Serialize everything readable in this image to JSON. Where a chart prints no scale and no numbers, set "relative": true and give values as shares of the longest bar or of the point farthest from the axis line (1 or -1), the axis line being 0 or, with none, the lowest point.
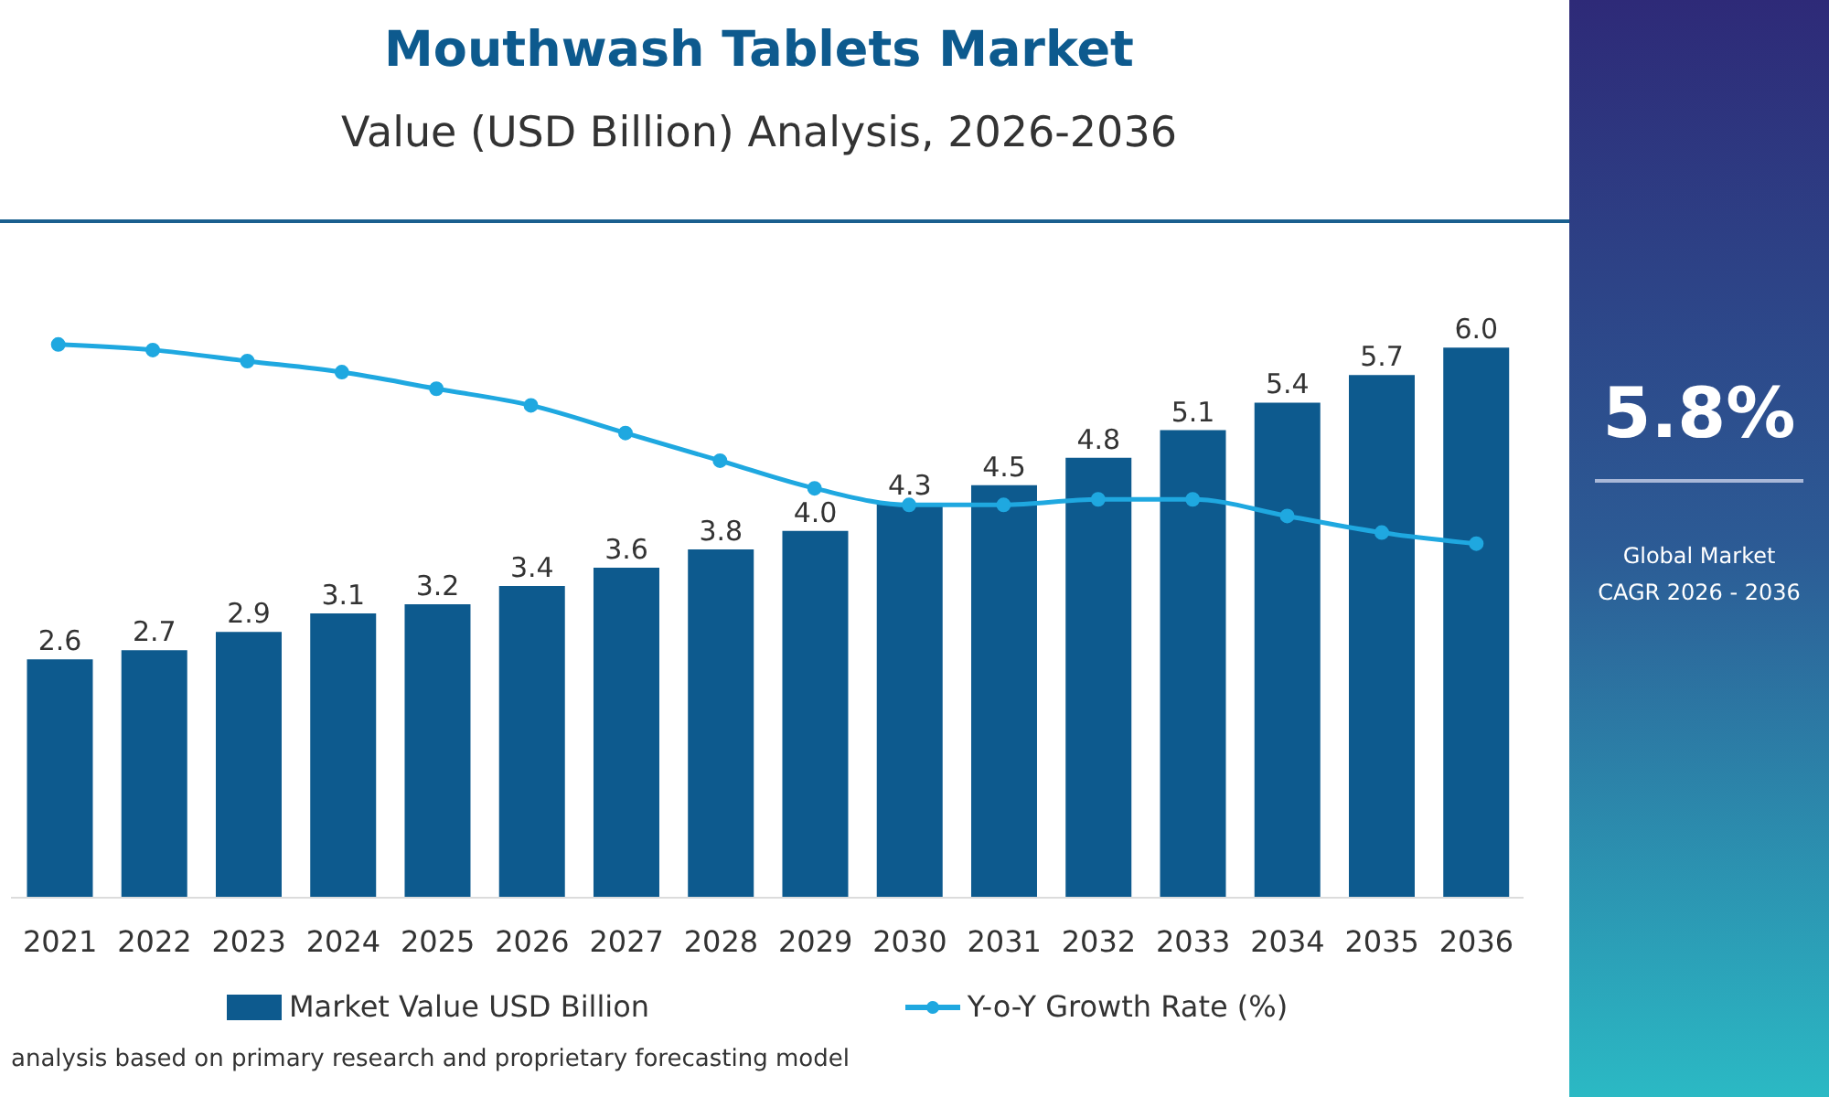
{
  "chart_data": [
    {
      "type": "bar",
      "title": "Mouthwash Tablets Market",
      "subtitle": "Value (USD Billion) Analysis, 2026-2036",
      "categories": [
        "2021",
        "2022",
        "2023",
        "2024",
        "2025",
        "2026",
        "2027",
        "2028",
        "2029",
        "2030",
        "2031",
        "2032",
        "2033",
        "2034",
        "2035",
        "2036"
      ],
      "series": [
        {
          "name": "Market Value USD Billion",
          "color": "#0d5a8e",
          "values": [
            2.6,
            2.7,
            2.9,
            3.1,
            3.2,
            3.4,
            3.6,
            3.8,
            4.0,
            4.3,
            4.5,
            4.8,
            5.1,
            5.4,
            5.7,
            6.0
          ],
          "value_labels": [
            "2.6",
            "2.7",
            "2.9",
            "3.1",
            "3.2",
            "3.4",
            "3.6",
            "3.8",
            "4.0",
            "4.3",
            "4.5",
            "4.8",
            "5.1",
            "5.4",
            "5.7",
            "6.0"
          ]
        }
      ],
      "tick_labels": "x",
      "legend": "bottom",
      "annotations": [
        "analysis based on primary research and proprietary forecasting model"
      ]
    },
    {
      "type": "line",
      "relative": true,
      "categories": [
        null,
        null,
        null,
        null,
        null,
        null,
        null,
        null,
        null,
        null,
        null,
        null,
        null,
        null,
        null,
        null
      ],
      "series": [
        {
          "name": "Y-o-Y Growth Rate (%)",
          "color": "#1fa8e0",
          "values": [
            1.0,
            0.99,
            0.97,
            0.95,
            0.92,
            0.89,
            0.84,
            0.79,
            0.74,
            0.71,
            0.71,
            0.72,
            0.72,
            0.69,
            0.66,
            0.64
          ]
        }
      ],
      "tick_labels": false,
      "legend": "bottom",
      "marker": "circle"
    },
    {
      "type": "other",
      "title": "5.8%",
      "subtitle": "Global Market CAGR 2026 - 2036"
    }
  ]
}
